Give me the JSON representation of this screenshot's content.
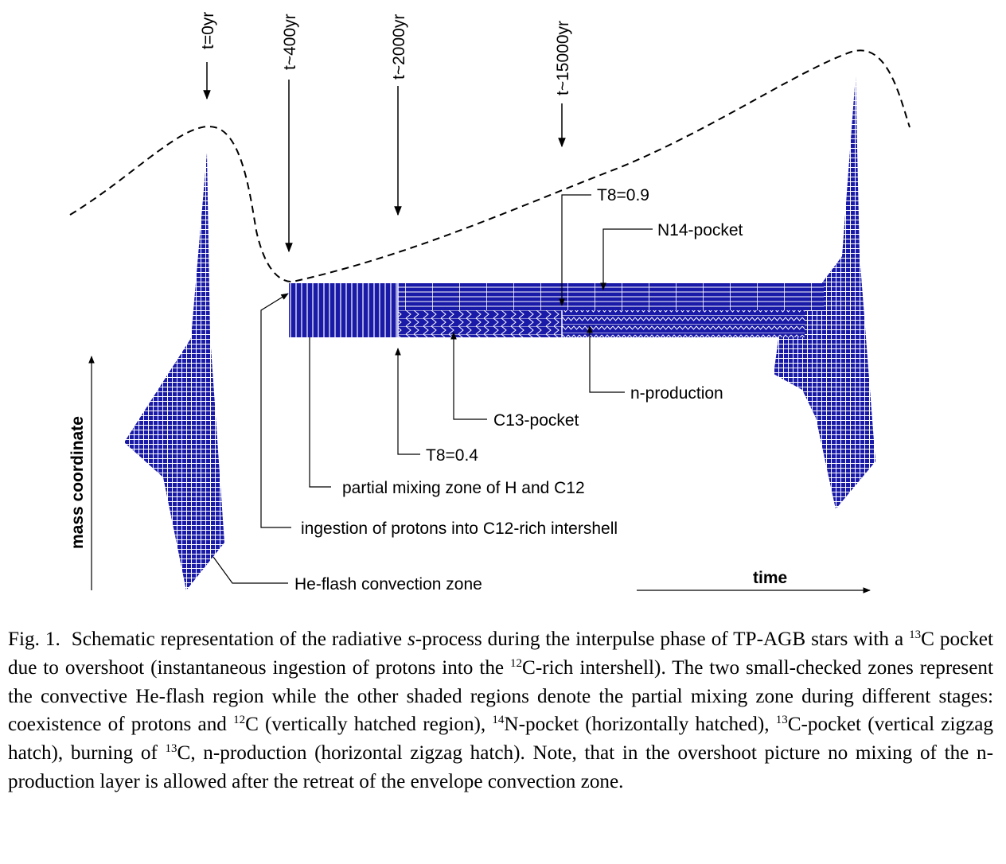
{
  "time_markers": [
    "t=0yr",
    "t~400yr",
    "t~2000yr",
    "t~15000yr"
  ],
  "labels": {
    "t8_09": "T8=0.9",
    "n14_pocket": "N14-pocket",
    "n_production": "n-production",
    "c13_pocket": "C13-pocket",
    "t8_04": "T8=0.4",
    "partial_mixing": "partial mixing zone of H and C12",
    "ingestion": "ingestion of protons into C12-rich intershell",
    "he_flash": "He-flash convection zone",
    "mass_axis": "mass coordinate",
    "time_axis": "time"
  },
  "caption": {
    "fig": "Fig. 1.",
    "p1": "Schematic representation of the radiative ",
    "p1_em": "s",
    "p2": "-process during the interpulse phase of TP-AGB stars with a ",
    "sup1": "13",
    "p3": "C pocket due to overshoot (instantaneous ingestion of protons into the ",
    "sup2": "12",
    "p4": "C-rich intershell). The two small-checked zones represent the convective He-flash region while the other shaded regions denote the partial mixing zone during different stages: coexistence of protons and ",
    "sup3": "12",
    "p5": "C (vertically hatched region), ",
    "sup4": "14",
    "p6": "N-pocket (horizontally hatched), ",
    "sup5": "13",
    "p7": "C-pocket (vertical zigzag hatch), burning of ",
    "sup6": "13",
    "p8": "C, n-production (horizontal zigzag hatch). Note, that in the overshoot picture no mixing of the n-production layer is allowed after the retreat of the envelope convection zone."
  },
  "colors": {
    "fill": "#1a1aa8",
    "hatch_line": "#ffffff",
    "ink": "#000000"
  }
}
